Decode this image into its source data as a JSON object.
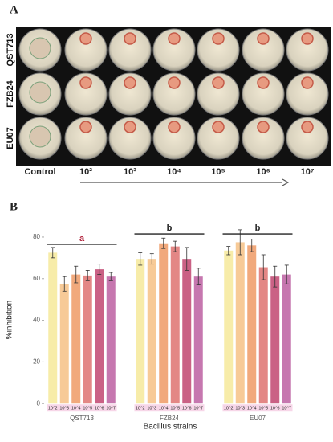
{
  "panel_a": {
    "label": "A",
    "rows": [
      "QST713",
      "FZB24",
      "EU07"
    ],
    "columns": [
      "Control",
      "10²",
      "10³",
      "10⁴",
      "10⁵",
      "10⁶",
      "10⁷"
    ]
  },
  "chart_data": {
    "type": "bar",
    "panel_label": "B",
    "x_label": "Bacillus strains",
    "y_label": "%inhibition",
    "categories": [
      "QST713",
      "FZB24",
      "EU07"
    ],
    "series": [
      {
        "name": "10^2",
        "color": "#f6eaa0",
        "values": [
          72.5,
          69.5,
          73.5
        ],
        "errors": [
          2.5,
          3,
          2
        ]
      },
      {
        "name": "10^3",
        "color": "#f6c48c",
        "values": [
          57.5,
          69.5,
          77.5
        ],
        "errors": [
          3.5,
          2.5,
          6
        ]
      },
      {
        "name": "10^4",
        "color": "#f0a06e",
        "values": [
          62,
          77,
          76
        ],
        "errors": [
          4,
          2.5,
          3
        ]
      },
      {
        "name": "10^5",
        "color": "#e07a78",
        "values": [
          61.5,
          75.5,
          65.5
        ],
        "errors": [
          2.5,
          2.5,
          6
        ]
      },
      {
        "name": "10^6",
        "color": "#c45078",
        "values": [
          64.5,
          69.5,
          61
        ],
        "errors": [
          2.5,
          5.5,
          5
        ]
      },
      {
        "name": "10^7",
        "color": "#c068a6",
        "values": [
          61,
          61,
          62
        ],
        "errors": [
          2,
          4,
          4.5
        ]
      }
    ],
    "groups": [
      {
        "label": "a",
        "color": "#b0203a",
        "value": 76.5
      },
      {
        "label": "b",
        "color": "#222",
        "value": 81.5
      },
      {
        "label": "b",
        "color": "#222",
        "value": 81.5
      }
    ],
    "ylim": [
      -3,
      85
    ],
    "yticks": [
      0,
      20,
      40,
      60,
      80
    ],
    "grid": false
  }
}
